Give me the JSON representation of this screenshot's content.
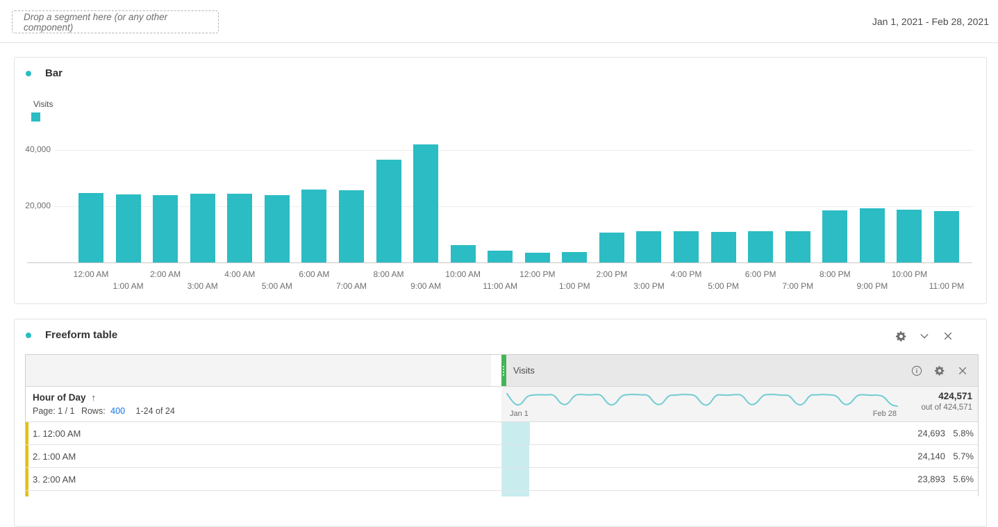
{
  "colors": {
    "accent_teal": "#2bbcc4",
    "sparkline_teal": "#6fccd3",
    "cell_bar_teal": "#c9ecef",
    "drag_green": "#44b556",
    "row_yellow": "#e2c116",
    "link_blue": "#1473e6"
  },
  "topbar": {
    "dropzone_label": "Drop a segment here (or any other component)",
    "date_range": "Jan 1, 2021 - Feb 28, 2021"
  },
  "bar_panel": {
    "title": "Bar",
    "legend_label": "Visits"
  },
  "chart_data": [
    {
      "type": "bar",
      "title": "Bar",
      "categories": [
        "12:00 AM",
        "1:00 AM",
        "2:00 AM",
        "3:00 AM",
        "4:00 AM",
        "5:00 AM",
        "6:00 AM",
        "7:00 AM",
        "8:00 AM",
        "9:00 AM",
        "10:00 AM",
        "11:00 AM",
        "12:00 PM",
        "1:00 PM",
        "2:00 PM",
        "3:00 PM",
        "4:00 PM",
        "5:00 PM",
        "6:00 PM",
        "7:00 PM",
        "8:00 PM",
        "9:00 PM",
        "10:00 PM",
        "11:00 PM"
      ],
      "series": [
        {
          "name": "Visits",
          "color": "#2bbcc4",
          "values": [
            24693,
            24140,
            23893,
            24300,
            24500,
            24000,
            25900,
            25500,
            36400,
            41800,
            6200,
            4300,
            3500,
            3700,
            10700,
            11000,
            11200,
            10900,
            11000,
            11000,
            18500,
            19100,
            18800,
            18200
          ]
        }
      ],
      "xlabel": "",
      "ylabel": "Visits",
      "yticks": [
        20000,
        40000
      ],
      "ylim": [
        0,
        45000
      ],
      "grid": true,
      "legend_position": "top-left"
    },
    {
      "type": "line",
      "name": "visits-daily-sparkline",
      "x_start_label": "Jan 1",
      "x_end_label": "Feb 28",
      "color": "#6fccd3",
      "values": [
        7800,
        6200,
        6000,
        7500,
        7600,
        7650,
        7600,
        7700,
        6200,
        6100,
        7600,
        7700,
        7600,
        7650,
        7700,
        6150,
        6050,
        7550,
        7650,
        7700,
        7600,
        7650,
        6200,
        6100,
        7600,
        7550,
        7700,
        7650,
        7600,
        6150,
        6000,
        7650,
        7600,
        7550,
        7700,
        7600,
        6100,
        6200,
        7600,
        7700,
        7650,
        7550,
        7600,
        6150,
        6050,
        7650,
        7600,
        7700,
        7600,
        7550,
        6100,
        6200,
        7600,
        7650,
        7550,
        7600,
        7400,
        6100,
        5900
      ],
      "total": 424571
    }
  ],
  "freeform_panel": {
    "title": "Freeform table",
    "metric_column_header": "Visits",
    "dimension_header": "Hour of Day",
    "sort_arrow": "↑",
    "pagination": {
      "page_label": "Page: 1 / 1",
      "rows_label": "Rows:",
      "rows_value": "400",
      "range_label": "1-24 of 24"
    },
    "summary": {
      "total": "424,571",
      "out_of": "out of 424,571",
      "start_label": "Jan 1",
      "end_label": "Feb 28"
    },
    "rows": [
      {
        "label": "1. 12:00 AM",
        "visits": "24,693",
        "pct": "5.8%",
        "bar_pct": 5.8
      },
      {
        "label": "2. 1:00 AM",
        "visits": "24,140",
        "pct": "5.7%",
        "bar_pct": 5.7
      },
      {
        "label": "3. 2:00 AM",
        "visits": "23,893",
        "pct": "5.6%",
        "bar_pct": 5.6
      },
      {
        "label": "",
        "visits": "",
        "pct": "",
        "bar_pct": 5.7
      }
    ]
  }
}
